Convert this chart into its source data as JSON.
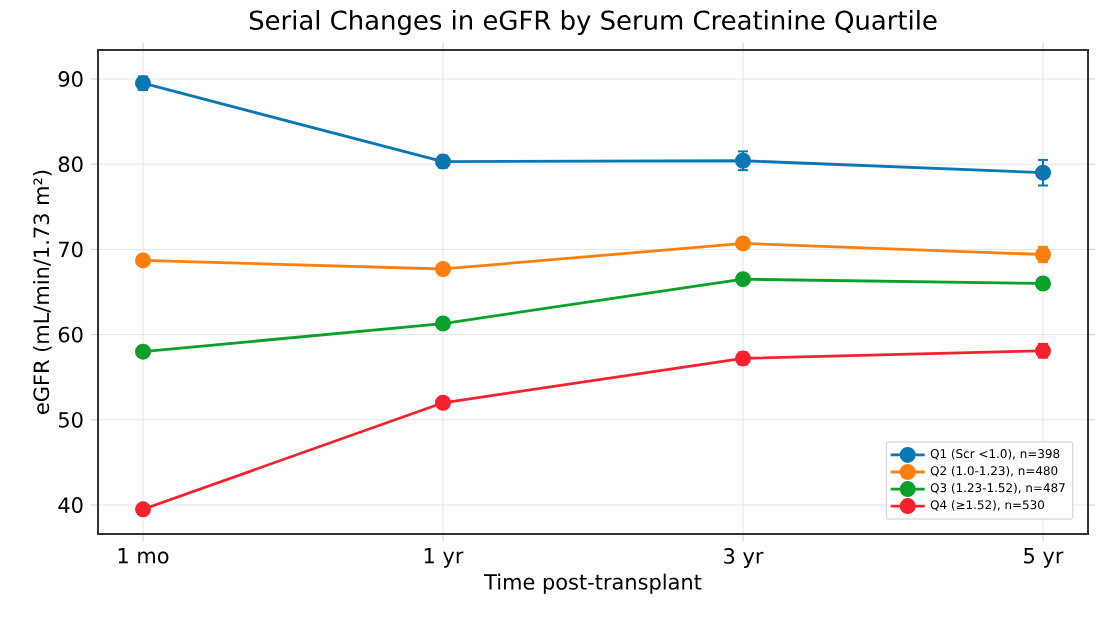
{
  "chart_data": {
    "type": "line",
    "title": "Serial Changes in eGFR by Serum Creatinine Quartile",
    "xlabel": "Time post-transplant",
    "ylabel": "eGFR (mL/min/1.73 m²)",
    "categories": [
      "1 mo",
      "1 yr",
      "3 yr",
      "5 yr"
    ],
    "ylim": [
      36.6,
      93.4
    ],
    "yticks": [
      40,
      50,
      60,
      70,
      80,
      90
    ],
    "grid": true,
    "legend": "bottom right",
    "marker": "circle",
    "line_style": "solid",
    "series": [
      {
        "name": "Q1 (Scr <1.0), n=398",
        "color": "#0a77b4",
        "values": [
          89.5,
          80.3,
          80.4,
          79.0
        ],
        "errors": [
          0.8,
          0.7,
          1.1,
          1.5
        ]
      },
      {
        "name": "Q2 (1.0-1.23), n=480",
        "color": "#ff7f0e",
        "values": [
          68.7,
          67.7,
          70.7,
          69.4
        ],
        "errors": [
          0.4,
          0.4,
          0.6,
          0.9
        ]
      },
      {
        "name": "Q3 (1.23-1.52), n=487",
        "color": "#0aa02a",
        "values": [
          58.0,
          61.3,
          66.5,
          66.0
        ],
        "errors": [
          0.4,
          0.4,
          0.5,
          0.6
        ]
      },
      {
        "name": "Q4 (≥1.52), n=530",
        "color": "#f5222d",
        "values": [
          39.5,
          52.0,
          57.2,
          58.1
        ],
        "errors": [
          0.5,
          0.5,
          0.7,
          0.8
        ]
      }
    ]
  }
}
